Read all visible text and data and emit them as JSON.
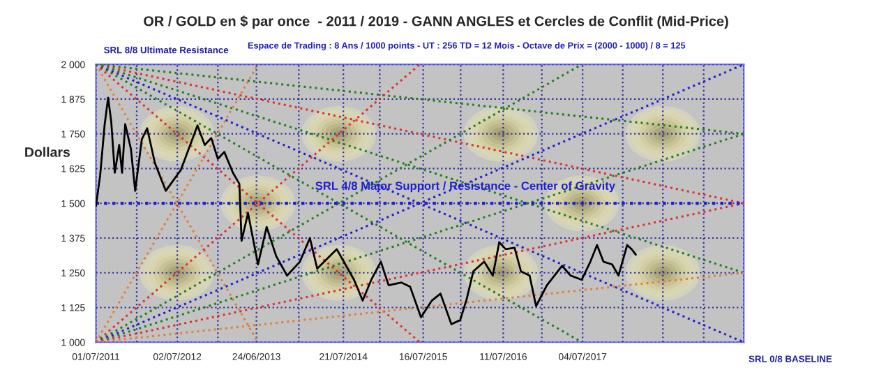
{
  "chart_data": {
    "type": "line",
    "title": "OR / GOLD en $ par once  - 2011 / 2019 - GANN ANGLES et Cercles de Conflit (Mid-Price)",
    "subtitle": "Espace de Trading : 8 Ans / 1000 points - UT : 256 TD = 12 Mois - Octave de Prix = (2000 - 1000) / 8 = 125",
    "ylabel": "Dollars",
    "xlim": [
      "2011-07-01",
      "2019-07-01"
    ],
    "xticks": [
      {
        "value": "2011-07-01",
        "label": "01/07/2011"
      },
      {
        "value": "2012-01-01",
        "label": null
      },
      {
        "value": "2012-07-02",
        "label": "02/07/2012"
      },
      {
        "value": "2013-01-01",
        "label": null
      },
      {
        "value": "2013-06-24",
        "label": "24/06/2013"
      },
      {
        "value": "2014-01-01",
        "label": null
      },
      {
        "value": "2014-07-21",
        "label": "21/07/2014"
      },
      {
        "value": "2015-01-01",
        "label": null
      },
      {
        "value": "2015-07-16",
        "label": "16/07/2015"
      },
      {
        "value": "2016-01-01",
        "label": null
      },
      {
        "value": "2016-07-11",
        "label": "11/07/2016"
      },
      {
        "value": "2017-01-01",
        "label": null
      },
      {
        "value": "2017-07-04",
        "label": "04/07/2017"
      },
      {
        "value": "2018-01-01",
        "label": null
      },
      {
        "value": "2018-07-01",
        "label": null
      },
      {
        "value": "2019-01-01",
        "label": null
      },
      {
        "value": "2019-07-01",
        "label": null
      }
    ],
    "ylim": [
      1000,
      2000
    ],
    "yticks": [
      {
        "value": 1000,
        "label": "1 000"
      },
      {
        "value": 1125,
        "label": "1 125"
      },
      {
        "value": 1250,
        "label": "1 250"
      },
      {
        "value": 1375,
        "label": "1 375"
      },
      {
        "value": 1500,
        "label": "1 500"
      },
      {
        "value": 1625,
        "label": "1 625"
      },
      {
        "value": 1750,
        "label": "1 750"
      },
      {
        "value": 1875,
        "label": "1 875"
      },
      {
        "value": 2000,
        "label": "2 000"
      }
    ],
    "grid": true,
    "series": [
      {
        "color": "#e08040",
        "line_style": "dotted",
        "x": [
          "2011-07-01",
          "2013-07-01"
        ],
        "values": [
          2000,
          1000
        ]
      },
      {
        "color": "#e03030",
        "line_style": "dotted",
        "x": [
          "2011-07-01",
          "2015-07-01"
        ],
        "values": [
          2000,
          1000
        ]
      },
      {
        "color": "#208020",
        "line_style": "dotted",
        "x": [
          "2011-07-01",
          "2017-07-01"
        ],
        "values": [
          2000,
          1000
        ]
      },
      {
        "color": "#2020d0",
        "line_style": "dotted",
        "x": [
          "2011-07-01",
          "2019-07-01"
        ],
        "values": [
          2000,
          1000
        ]
      },
      {
        "color": "#208020",
        "line_style": "dotted",
        "x": [
          "2011-07-01",
          "2019-07-01"
        ],
        "values": [
          2000,
          1250
        ]
      },
      {
        "color": "#e03030",
        "line_style": "dotted",
        "x": [
          "2011-07-01",
          "2019-07-01"
        ],
        "values": [
          2000,
          1500
        ]
      },
      {
        "color": "#208020",
        "line_style": "dotted",
        "x": [
          "2011-07-01",
          "2019-07-01"
        ],
        "values": [
          2000,
          1750
        ]
      },
      {
        "color": "#e08040",
        "line_style": "dotted",
        "x": [
          "2011-07-01",
          "2013-07-01"
        ],
        "values": [
          1000,
          2000
        ]
      },
      {
        "color": "#e03030",
        "line_style": "dotted",
        "x": [
          "2011-07-01",
          "2015-07-01"
        ],
        "values": [
          1000,
          2000
        ]
      },
      {
        "color": "#208020",
        "line_style": "dotted",
        "x": [
          "2011-07-01",
          "2017-07-01"
        ],
        "values": [
          1000,
          2000
        ]
      },
      {
        "color": "#2020d0",
        "line_style": "dotted",
        "x": [
          "2011-07-01",
          "2019-07-01"
        ],
        "values": [
          1000,
          2000
        ]
      },
      {
        "color": "#208020",
        "line_style": "dotted",
        "x": [
          "2011-07-01",
          "2019-07-01"
        ],
        "values": [
          1000,
          1750
        ]
      },
      {
        "color": "#e03030",
        "line_style": "dotted",
        "x": [
          "2011-07-01",
          "2019-07-01"
        ],
        "values": [
          1000,
          1500
        ]
      },
      {
        "color": "#e08040",
        "line_style": "dotted",
        "x": [
          "2011-07-01",
          "2019-07-01"
        ],
        "values": [
          1000,
          1250
        ]
      },
      {
        "color": "#000000",
        "line_style": "solid",
        "x": [
          "2011-07-01",
          "2011-07-20",
          "2011-08-09",
          "2011-08-25",
          "2011-09-08",
          "2011-09-24",
          "2011-10-14",
          "2011-10-27",
          "2011-11-10",
          "2011-12-06",
          "2011-12-25",
          "2012-01-24",
          "2012-02-17",
          "2012-03-23",
          "2012-05-11",
          "2012-07-18",
          "2012-10-01",
          "2012-11-03",
          "2012-12-02",
          "2013-01-01",
          "2013-01-30",
          "2013-03-10",
          "2013-04-08",
          "2013-04-18",
          "2013-05-17",
          "2013-07-01",
          "2013-08-09",
          "2013-09-21",
          "2013-11-09",
          "2014-01-06",
          "2014-02-20",
          "2014-03-25",
          "2014-06-21",
          "2014-09-07",
          "2014-10-16",
          "2014-11-24",
          "2015-01-06",
          "2015-02-10",
          "2015-04-09",
          "2015-05-18",
          "2015-07-06",
          "2015-08-24",
          "2015-10-02",
          "2015-11-20",
          "2015-12-30",
          "2016-01-28",
          "2016-02-27",
          "2016-04-16",
          "2016-05-25",
          "2016-06-23",
          "2016-07-22",
          "2016-08-31",
          "2016-09-29",
          "2016-11-07",
          "2016-12-06",
          "2017-01-24",
          "2017-04-02",
          "2017-05-11",
          "2017-06-30",
          "2017-08-08",
          "2017-09-07",
          "2017-10-06",
          "2017-11-14",
          "2017-12-13",
          "2018-01-21",
          "2018-02-10",
          "2018-03-01"
        ],
        "values": [
          1490,
          1600,
          1780,
          1880,
          1795,
          1610,
          1710,
          1610,
          1785,
          1695,
          1545,
          1730,
          1770,
          1645,
          1545,
          1620,
          1780,
          1710,
          1735,
          1660,
          1685,
          1610,
          1570,
          1365,
          1465,
          1280,
          1415,
          1310,
          1240,
          1290,
          1375,
          1265,
          1335,
          1225,
          1150,
          1225,
          1290,
          1205,
          1215,
          1200,
          1090,
          1150,
          1175,
          1065,
          1080,
          1155,
          1255,
          1290,
          1240,
          1360,
          1335,
          1340,
          1255,
          1240,
          1130,
          1205,
          1275,
          1240,
          1225,
          1290,
          1350,
          1290,
          1280,
          1240,
          1350,
          1335,
          1315
        ]
      }
    ],
    "ref_lines": [
      {
        "axis": "y",
        "value": 1500,
        "label": "SRL 4/8 Major Support / Resistance - Center of Gravity",
        "color": "#2020d0",
        "line_style": "dotted"
      }
    ],
    "annotations": [
      {
        "text": "SRL 8/8 Ultimate Resistance",
        "x": "2011-07-01",
        "y": 2000
      },
      {
        "text": "SRL 0/8 BASELINE",
        "x": "2019-07-01",
        "y": 1000
      }
    ]
  }
}
